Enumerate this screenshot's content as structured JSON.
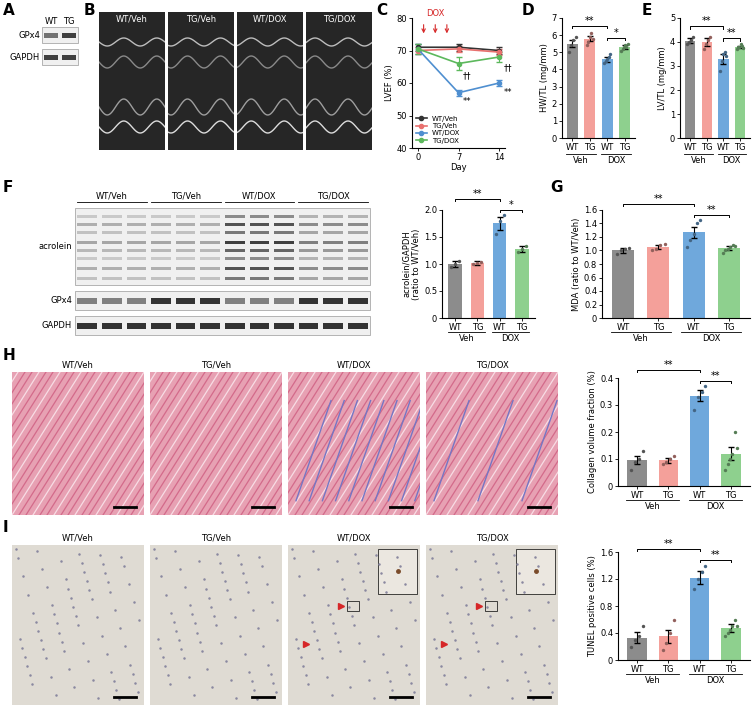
{
  "panel_labels": [
    "A",
    "B",
    "C",
    "D",
    "E",
    "F",
    "G",
    "H",
    "I"
  ],
  "blot_A": {
    "lanes": [
      "WT",
      "TG"
    ],
    "rows": [
      "GPx4",
      "GAPDH"
    ]
  },
  "echo_B": {
    "panels": [
      "WT/Veh",
      "TG/Veh",
      "WT/DOX",
      "TG/DOX"
    ]
  },
  "blot_F": {
    "groups": [
      "WT/Veh",
      "TG/Veh",
      "WT/DOX",
      "TG/DOX"
    ],
    "rows": [
      "acrolein",
      "GPx4",
      "GAPDH"
    ]
  },
  "histology_H": {
    "panels": [
      "WT/Veh",
      "TG/Veh",
      "WT/DOX",
      "TG/DOX"
    ]
  },
  "histology_I": {
    "panels": [
      "WT/Veh",
      "TG/Veh",
      "WT/DOX",
      "TG/DOX"
    ]
  },
  "chart_data": [
    {
      "type": "line",
      "ylabel": "LVEF (%)",
      "xlabel": "Day",
      "x": [
        0,
        7,
        14
      ],
      "xlim": [
        -1,
        15
      ],
      "xticks": [
        0,
        7,
        14
      ],
      "ylim": [
        40,
        80
      ],
      "yticks": [
        40,
        50,
        60,
        70,
        80
      ],
      "legend": "lower left",
      "series": [
        {
          "name": "WT/Veh",
          "color": "#333333",
          "marker": "o",
          "values": [
            71,
            71,
            70
          ],
          "errors": [
            1,
            1,
            1
          ]
        },
        {
          "name": "TG/Veh",
          "color": "#e8706e",
          "marker": "o",
          "values": [
            70,
            70.5,
            69.5
          ],
          "errors": [
            1,
            1,
            1
          ]
        },
        {
          "name": "WT/DOX",
          "color": "#4f8fd0",
          "marker": "o",
          "values": [
            70.5,
            57,
            60
          ],
          "errors": [
            1.5,
            1,
            1
          ]
        },
        {
          "name": "TG/DOX",
          "color": "#5cb85c",
          "marker": "o",
          "values": [
            70.5,
            66,
            68
          ],
          "errors": [
            1.5,
            2,
            1.5
          ]
        }
      ],
      "treatment": {
        "label": "DOX",
        "x": [
          1,
          3,
          5
        ]
      },
      "annotations": [
        {
          "x": 7,
          "series": "WT/DOX",
          "label": "**"
        },
        {
          "x": 14,
          "series": "WT/DOX",
          "label": "**"
        },
        {
          "x": 7,
          "series": "TG/DOX",
          "label": "††"
        },
        {
          "x": 14,
          "series": "TG/DOX",
          "label": "††"
        }
      ]
    },
    {
      "type": "bar",
      "ylabel": "HW/TL (mg/mm)",
      "categories": [
        "WT",
        "TG",
        "WT",
        "TG"
      ],
      "groups": [
        {
          "label": "Veh",
          "members": [
            0,
            1
          ]
        },
        {
          "label": "DOX",
          "members": [
            2,
            3
          ]
        }
      ],
      "colors": [
        "#8c8c8c",
        "#f4a09a",
        "#6fa8dc",
        "#8ed08e"
      ],
      "marker": "o",
      "ylim": [
        0,
        7
      ],
      "yticks": [
        0,
        1,
        2,
        3,
        4,
        5,
        6,
        7
      ],
      "values": [
        5.5,
        5.8,
        4.6,
        5.3
      ],
      "errors": [
        0.2,
        0.15,
        0.15,
        0.1
      ],
      "points": [
        [
          5.0,
          5.4,
          5.7,
          5.9
        ],
        [
          5.4,
          5.6,
          5.9,
          6.1,
          5.8
        ],
        [
          4.4,
          4.5,
          4.6,
          4.7,
          4.9
        ],
        [
          5.1,
          5.2,
          5.3,
          5.4,
          5.3,
          5.5
        ]
      ],
      "significance": [
        {
          "from": 0,
          "to": 2,
          "label": "**"
        },
        {
          "from": 2,
          "to": 3,
          "label": "*"
        }
      ]
    },
    {
      "type": "bar",
      "ylabel": "LV/TL (mg/mm)",
      "categories": [
        "WT",
        "TG",
        "WT",
        "TG"
      ],
      "groups": [
        {
          "label": "Veh",
          "members": [
            0,
            1
          ]
        },
        {
          "label": "DOX",
          "members": [
            2,
            3
          ]
        }
      ],
      "colors": [
        "#8c8c8c",
        "#f4a09a",
        "#6fa8dc",
        "#8ed08e"
      ],
      "marker": "o",
      "ylim": [
        0,
        5
      ],
      "yticks": [
        0,
        1,
        2,
        3,
        4,
        5
      ],
      "values": [
        4.05,
        4.0,
        3.3,
        3.8
      ],
      "errors": [
        0.1,
        0.15,
        0.2,
        0.05
      ],
      "points": [
        [
          3.9,
          4.0,
          4.1,
          4.2
        ],
        [
          3.7,
          3.9,
          4.1,
          4.2
        ],
        [
          2.8,
          3.2,
          3.5,
          3.6,
          3.4
        ],
        [
          3.7,
          3.8,
          3.8,
          3.9,
          3.85,
          3.75
        ]
      ],
      "significance": [
        {
          "from": 0,
          "to": 2,
          "label": "**"
        },
        {
          "from": 2,
          "to": 3,
          "label": "**"
        }
      ]
    },
    {
      "type": "bar",
      "ylabel": "acrolein/GAPDH\n(ratio to WT/Veh)",
      "categories": [
        "WT",
        "TG",
        "WT",
        "TG"
      ],
      "groups": [
        {
          "label": "Veh",
          "members": [
            0,
            1
          ]
        },
        {
          "label": "DOX",
          "members": [
            2,
            3
          ]
        }
      ],
      "colors": [
        "#8c8c8c",
        "#f4a09a",
        "#6fa8dc",
        "#8ed08e"
      ],
      "marker": "o",
      "ylim": [
        0,
        2
      ],
      "yticks": [
        0,
        0.5,
        {
          "value": 1,
          "label": "1.0"
        },
        1.5,
        {
          "value": 2,
          "label": "2.0"
        }
      ],
      "values": [
        1.0,
        1.02,
        1.75,
        1.28
      ],
      "errors": [
        0.05,
        0.03,
        0.12,
        0.05
      ],
      "points": [
        [
          0.95,
          1.0,
          1.05
        ],
        [
          1.0,
          1.02,
          1.04
        ],
        [
          1.55,
          1.8,
          1.9
        ],
        [
          1.22,
          1.28,
          1.33
        ]
      ],
      "significance": [
        {
          "from": 0,
          "to": 2,
          "label": "**"
        },
        {
          "from": 2,
          "to": 3,
          "label": "*"
        }
      ]
    },
    {
      "type": "bar",
      "ylabel": "MDA (ratio to WT/Veh)",
      "categories": [
        "WT",
        "TG",
        "WT",
        "TG"
      ],
      "groups": [
        {
          "label": "Veh",
          "members": [
            0,
            1
          ]
        },
        {
          "label": "DOX",
          "members": [
            2,
            3
          ]
        }
      ],
      "colors": [
        "#8c8c8c",
        "#f4a09a",
        "#6fa8dc",
        "#8ed08e"
      ],
      "marker": "o",
      "ylim": [
        0,
        1.6
      ],
      "yticks": [
        0,
        0.2,
        0.4,
        0.6,
        0.8,
        {
          "value": 1,
          "label": "1.0"
        },
        1.2,
        1.4,
        1.6
      ],
      "values": [
        1.0,
        1.05,
        1.27,
        1.03
      ],
      "errors": [
        0.03,
        0.03,
        0.08,
        0.03
      ],
      "points": [
        [
          0.95,
          1.0,
          1.02,
          1.03
        ],
        [
          1.0,
          1.02,
          1.08,
          1.1
        ],
        [
          1.05,
          1.15,
          1.25,
          1.4,
          1.45
        ],
        [
          0.97,
          1.0,
          1.02,
          1.05,
          1.08,
          1.06
        ]
      ],
      "significance": [
        {
          "from": 0,
          "to": 2,
          "label": "**"
        },
        {
          "from": 2,
          "to": 3,
          "label": "**"
        }
      ]
    },
    {
      "type": "bar",
      "ylabel": "Collagen volume fraction (%)",
      "categories": [
        "WT",
        "TG",
        "WT",
        "TG"
      ],
      "groups": [
        {
          "label": "Veh",
          "members": [
            0,
            1
          ]
        },
        {
          "label": "DOX",
          "members": [
            2,
            3
          ]
        }
      ],
      "colors": [
        "#8c8c8c",
        "#f4a09a",
        "#6fa8dc",
        "#8ed08e"
      ],
      "marker": "o",
      "ylim": [
        0,
        0.4
      ],
      "yticks": [
        0,
        0.1,
        0.2,
        0.3,
        0.4
      ],
      "values": [
        0.095,
        0.095,
        0.335,
        0.12
      ],
      "errors": [
        0.015,
        0.01,
        0.02,
        0.025
      ],
      "points": [
        [
          0.06,
          0.09,
          0.1,
          0.13
        ],
        [
          0.08,
          0.09,
          0.1,
          0.11
        ],
        [
          0.28,
          0.33,
          0.35,
          0.37
        ],
        [
          0.06,
          0.08,
          0.1,
          0.12,
          0.2,
          0.14
        ]
      ],
      "significance": [
        {
          "from": 0,
          "to": 2,
          "label": "**"
        },
        {
          "from": 2,
          "to": 3,
          "label": "**"
        }
      ]
    },
    {
      "type": "bar",
      "ylabel": "TUNEL positive cells (%)",
      "categories": [
        "WT",
        "TG",
        "WT",
        "TG"
      ],
      "groups": [
        {
          "label": "Veh",
          "members": [
            0,
            1
          ]
        },
        {
          "label": "DOX",
          "members": [
            2,
            3
          ]
        }
      ],
      "colors": [
        "#8c8c8c",
        "#f4a09a",
        "#6fa8dc",
        "#8ed08e"
      ],
      "marker": "o",
      "ylim": [
        0,
        1.6
      ],
      "yticks": [
        0,
        0.4,
        0.8,
        1.2,
        1.6
      ],
      "values": [
        0.33,
        0.35,
        1.22,
        0.47
      ],
      "errors": [
        0.08,
        0.1,
        0.1,
        0.06
      ],
      "points": [
        [
          0.2,
          0.3,
          0.35,
          0.5
        ],
        [
          0.15,
          0.25,
          0.4,
          0.6
        ],
        [
          1.05,
          1.2,
          1.3,
          1.4
        ],
        [
          0.35,
          0.4,
          0.45,
          0.5,
          0.6,
          0.5
        ]
      ],
      "significance": [
        {
          "from": 0,
          "to": 2,
          "label": "**"
        },
        {
          "from": 2,
          "to": 3,
          "label": "**"
        }
      ]
    }
  ]
}
